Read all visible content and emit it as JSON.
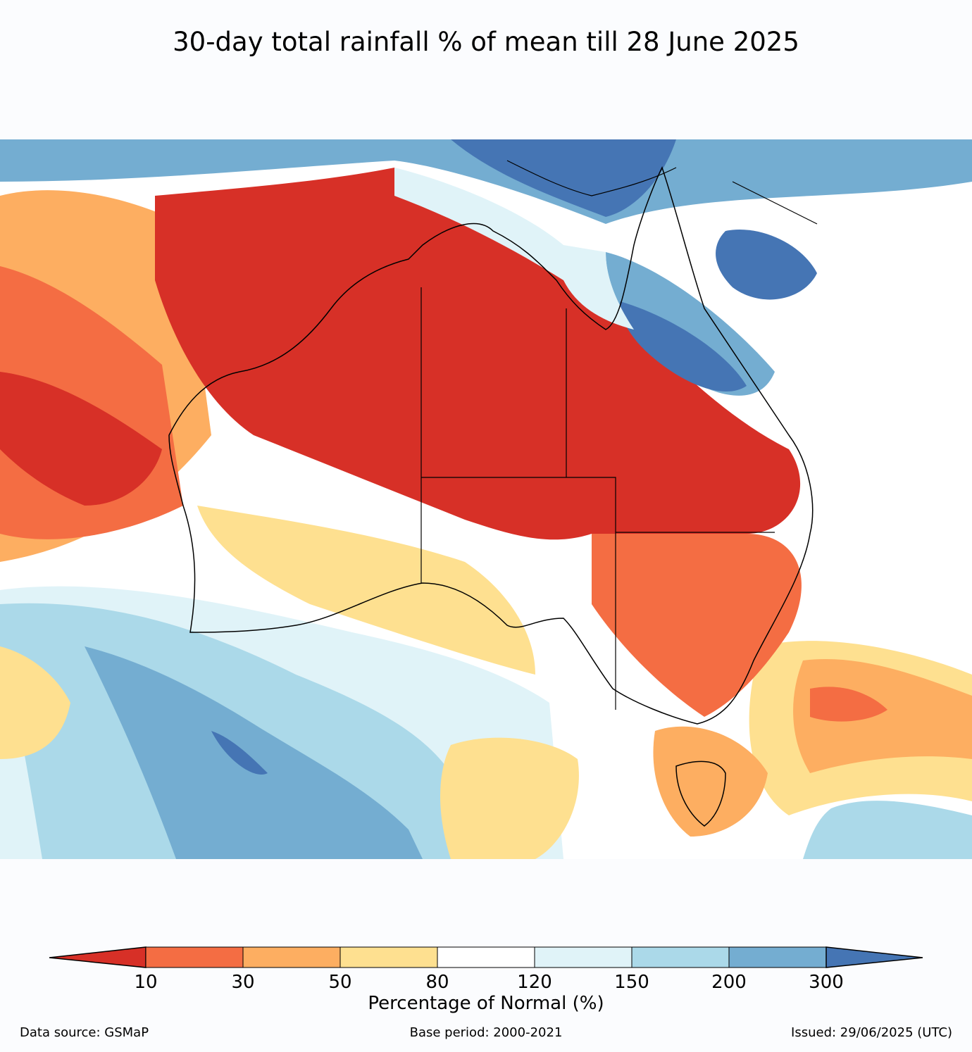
{
  "title": "30-day total rainfall % of mean till 28 June 2025",
  "colorbar": {
    "label": "Percentage of Normal (%)",
    "ticks": [
      "10",
      "30",
      "50",
      "80",
      "120",
      "150",
      "200",
      "300"
    ],
    "colors": [
      "#d73027",
      "#f46d43",
      "#fdae61",
      "#fee090",
      "#ffffff",
      "#e0f3f8",
      "#abd9e9",
      "#74add1",
      "#4575b4"
    ]
  },
  "footer": {
    "source": "Data source: GSMaP",
    "base_period": "Base period: 2000-2021",
    "issued": "Issued: 29/06/2025 (UTC)"
  },
  "map": {
    "region": "Australia",
    "colors": {
      "very_dry": "#d73027",
      "dry": "#f46d43",
      "below": "#fdae61",
      "slightly_below": "#fee090",
      "normal": "#ffffff",
      "slightly_above": "#e0f3f8",
      "above": "#abd9e9",
      "well_above": "#74add1",
      "very_wet": "#4575b4"
    }
  }
}
